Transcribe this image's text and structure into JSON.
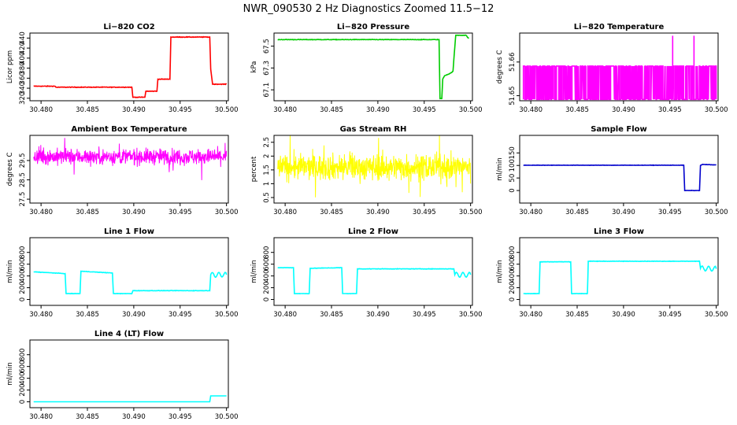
{
  "figure_title": "NWR_090530  2 Hz Diagnostics Zoomed 11.5−12",
  "chart_data": [
    {
      "type": "line",
      "title": "Li−820 CO2",
      "ylabel": "Licor ppm",
      "color": "#ff0000",
      "style": "step",
      "xlim": [
        30.4788,
        30.5002
      ],
      "ylim": [
        315,
        450
      ],
      "yticks": [
        320,
        340,
        360,
        380,
        400,
        420,
        440
      ],
      "yticklabels": [
        "320",
        "340",
        "360",
        "380",
        "400",
        "420",
        "440"
      ],
      "xticks": [
        30.48,
        30.485,
        30.49,
        30.495,
        30.5
      ],
      "xticklabels": [
        "30.480",
        "30.485",
        "30.490",
        "30.495",
        "30.500"
      ],
      "noise": 1.0,
      "x": [
        30.4792,
        30.4815,
        30.4816,
        30.4898,
        30.4899,
        30.4912,
        30.4913,
        30.4925,
        30.4926,
        30.4939,
        30.494,
        30.4982,
        30.4983,
        30.4985,
        30.4986,
        30.5
      ],
      "y": [
        344,
        344,
        342,
        342,
        322,
        322,
        334,
        334,
        358,
        358,
        442,
        442,
        378,
        348,
        348,
        348
      ]
    },
    {
      "type": "line",
      "title": "Li−820 Pressure",
      "ylabel": "kPa",
      "color": "#00cc00",
      "style": "step",
      "xlim": [
        30.4788,
        30.5002
      ],
      "ylim": [
        67.0,
        67.62
      ],
      "yticks": [
        67.1,
        67.3,
        67.5
      ],
      "yticklabels": [
        "67.1",
        "67.3",
        "67.5"
      ],
      "xticks": [
        30.48,
        30.485,
        30.49,
        30.495,
        30.5
      ],
      "xticklabels": [
        "30.480",
        "30.485",
        "30.490",
        "30.495",
        "30.500"
      ],
      "noise": 0.004,
      "x": [
        30.4792,
        30.4955,
        30.4962,
        30.4966,
        30.4967,
        30.4969,
        30.497,
        30.4972,
        30.4978,
        30.4981,
        30.4984,
        30.4988,
        30.4995,
        30.4998
      ],
      "y": [
        67.56,
        67.56,
        67.56,
        67.56,
        67.02,
        67.02,
        67.2,
        67.23,
        67.25,
        67.27,
        67.6,
        67.6,
        67.6,
        67.57
      ]
    },
    {
      "type": "line",
      "title": "Li−820 Temperature",
      "ylabel": "degrees C",
      "color": "#ff00ff",
      "style": "digital",
      "xlim": [
        30.4788,
        30.5002
      ],
      "ylim": [
        51.6485,
        51.6686
      ],
      "yticks": [
        51.65,
        51.66
      ],
      "yticklabels": [
        "51.65",
        "51.66"
      ],
      "xticks": [
        30.48,
        30.485,
        30.49,
        30.495,
        30.5
      ],
      "xticklabels": [
        "30.480",
        "30.485",
        "30.490",
        "30.495",
        "30.500"
      ],
      "levels": [
        51.6489,
        51.6588
      ],
      "spikes": [
        [
          30.4953,
          51.6678
        ],
        [
          30.4976,
          51.6678
        ]
      ],
      "x": [
        30.4792,
        30.5
      ],
      "y": [
        51.6588,
        51.6588
      ]
    },
    {
      "type": "line",
      "title": "Ambient Box Temperature",
      "ylabel": "degrees C",
      "color": "#ff00ff",
      "style": "noise",
      "xlim": [
        30.4788,
        30.5002
      ],
      "ylim": [
        27.3,
        30.8
      ],
      "yticks": [
        27.5,
        28.5,
        29.5
      ],
      "yticklabels": [
        "27.5",
        "28.5",
        "29.5"
      ],
      "xticks": [
        30.48,
        30.485,
        30.49,
        30.495,
        30.5
      ],
      "xticklabels": [
        "30.480",
        "30.485",
        "30.490",
        "30.495",
        "30.500"
      ],
      "noise": 0.35,
      "x": [
        30.4792,
        30.5
      ],
      "y": [
        29.7,
        29.7
      ]
    },
    {
      "type": "line",
      "title": "Gas Stream RH",
      "ylabel": "percent",
      "color": "#ffff00",
      "style": "noise",
      "xlim": [
        30.4788,
        30.5002
      ],
      "ylim": [
        0.3,
        2.75
      ],
      "yticks": [
        0.5,
        1.0,
        1.5,
        2.0,
        2.5
      ],
      "yticklabels": [
        "0.5",
        "1",
        "1.5",
        "2",
        "2.5"
      ],
      "xticks": [
        30.48,
        30.485,
        30.49,
        30.495,
        30.5
      ],
      "xticklabels": [
        "30.480",
        "30.485",
        "30.490",
        "30.495",
        "30.500"
      ],
      "noise": 0.4,
      "x": [
        30.4792,
        30.5
      ],
      "y": [
        1.6,
        1.6
      ]
    },
    {
      "type": "line",
      "title": "Sample Flow",
      "ylabel": "ml/min",
      "color": "#0000cc",
      "style": "step",
      "xlim": [
        30.4788,
        30.5002
      ],
      "ylim": [
        -50,
        220
      ],
      "yticks": [
        0,
        50,
        100,
        150
      ],
      "yticklabels": [
        "0",
        "50",
        "100",
        "150"
      ],
      "xticks": [
        30.48,
        30.485,
        30.49,
        30.495,
        30.5
      ],
      "xticklabels": [
        "30.480",
        "30.485",
        "30.490",
        "30.495",
        "30.500"
      ],
      "noise": 1.0,
      "x": [
        30.4792,
        30.4965,
        30.4966,
        30.4982,
        30.4983,
        30.4985,
        30.5
      ],
      "y": [
        101,
        101,
        0,
        0,
        100,
        104,
        102
      ]
    },
    {
      "type": "line",
      "title": "Line 1 Flow",
      "ylabel": "ml/min",
      "color": "#00ffff",
      "style": "step",
      "xlim": [
        30.4788,
        30.5002
      ],
      "ylim": [
        -100,
        1050
      ],
      "yticks": [
        0,
        200,
        400,
        600,
        800
      ],
      "yticklabels": [
        "0",
        "200",
        "400",
        "600",
        "800"
      ],
      "xticks": [
        30.48,
        30.485,
        30.49,
        30.495,
        30.5
      ],
      "xticklabels": [
        "30.480",
        "30.485",
        "30.490",
        "30.495",
        "30.500"
      ],
      "noise": 6,
      "wiggle_from": 30.4983,
      "x": [
        30.4792,
        30.4826,
        30.4827,
        30.4842,
        30.4843,
        30.4877,
        30.4878,
        30.4898,
        30.4899,
        30.4982,
        30.4983,
        30.5
      ],
      "y": [
        470,
        440,
        100,
        100,
        480,
        450,
        100,
        100,
        150,
        150,
        420,
        420
      ]
    },
    {
      "type": "line",
      "title": "Line 2 Flow",
      "ylabel": "ml/min",
      "color": "#00ffff",
      "style": "step",
      "xlim": [
        30.4788,
        30.5002
      ],
      "ylim": [
        -100,
        1050
      ],
      "yticks": [
        0,
        200,
        400,
        600,
        800
      ],
      "yticklabels": [
        "0",
        "200",
        "400",
        "600",
        "800"
      ],
      "xticks": [
        30.48,
        30.485,
        30.49,
        30.495,
        30.5
      ],
      "xticklabels": [
        "30.480",
        "30.485",
        "30.490",
        "30.495",
        "30.500"
      ],
      "noise": 6,
      "wiggle_from": 30.4983,
      "x": [
        30.4792,
        30.4809,
        30.481,
        30.4826,
        30.4827,
        30.4861,
        30.4862,
        30.4877,
        30.4878,
        30.4982,
        30.4983,
        30.5
      ],
      "y": [
        540,
        540,
        100,
        100,
        530,
        540,
        100,
        100,
        520,
        520,
        420,
        420
      ]
    },
    {
      "type": "line",
      "title": "Line 3 Flow",
      "ylabel": "ml/min",
      "color": "#00ffff",
      "style": "step",
      "xlim": [
        30.4788,
        30.5002
      ],
      "ylim": [
        -100,
        1050
      ],
      "yticks": [
        0,
        200,
        400,
        600,
        800
      ],
      "yticklabels": [
        "0",
        "200",
        "400",
        "600",
        "800"
      ],
      "xticks": [
        30.48,
        30.485,
        30.49,
        30.495,
        30.5
      ],
      "xticklabels": [
        "30.480",
        "30.485",
        "30.490",
        "30.495",
        "30.500"
      ],
      "noise": 6,
      "wiggle_from": 30.4983,
      "x": [
        30.4792,
        30.4809,
        30.481,
        30.4843,
        30.4844,
        30.4861,
        30.4862,
        30.4982,
        30.4983,
        30.5
      ],
      "y": [
        100,
        100,
        640,
        640,
        100,
        100,
        650,
        650,
        530,
        520
      ]
    },
    {
      "type": "line",
      "title": "Line 4 (LT) Flow",
      "ylabel": "ml/min",
      "color": "#00ffff",
      "style": "step",
      "xlim": [
        30.4788,
        30.5002
      ],
      "ylim": [
        -100,
        1050
      ],
      "yticks": [
        0,
        200,
        400,
        600,
        800
      ],
      "yticklabels": [
        "0",
        "200",
        "400",
        "600",
        "800"
      ],
      "xticks": [
        30.48,
        30.485,
        30.49,
        30.495,
        30.5
      ],
      "xticklabels": [
        "30.480",
        "30.485",
        "30.490",
        "30.495",
        "30.500"
      ],
      "noise": 0,
      "x": [
        30.4792,
        30.4982,
        30.4983,
        30.5
      ],
      "y": [
        0,
        0,
        100,
        100
      ]
    }
  ]
}
